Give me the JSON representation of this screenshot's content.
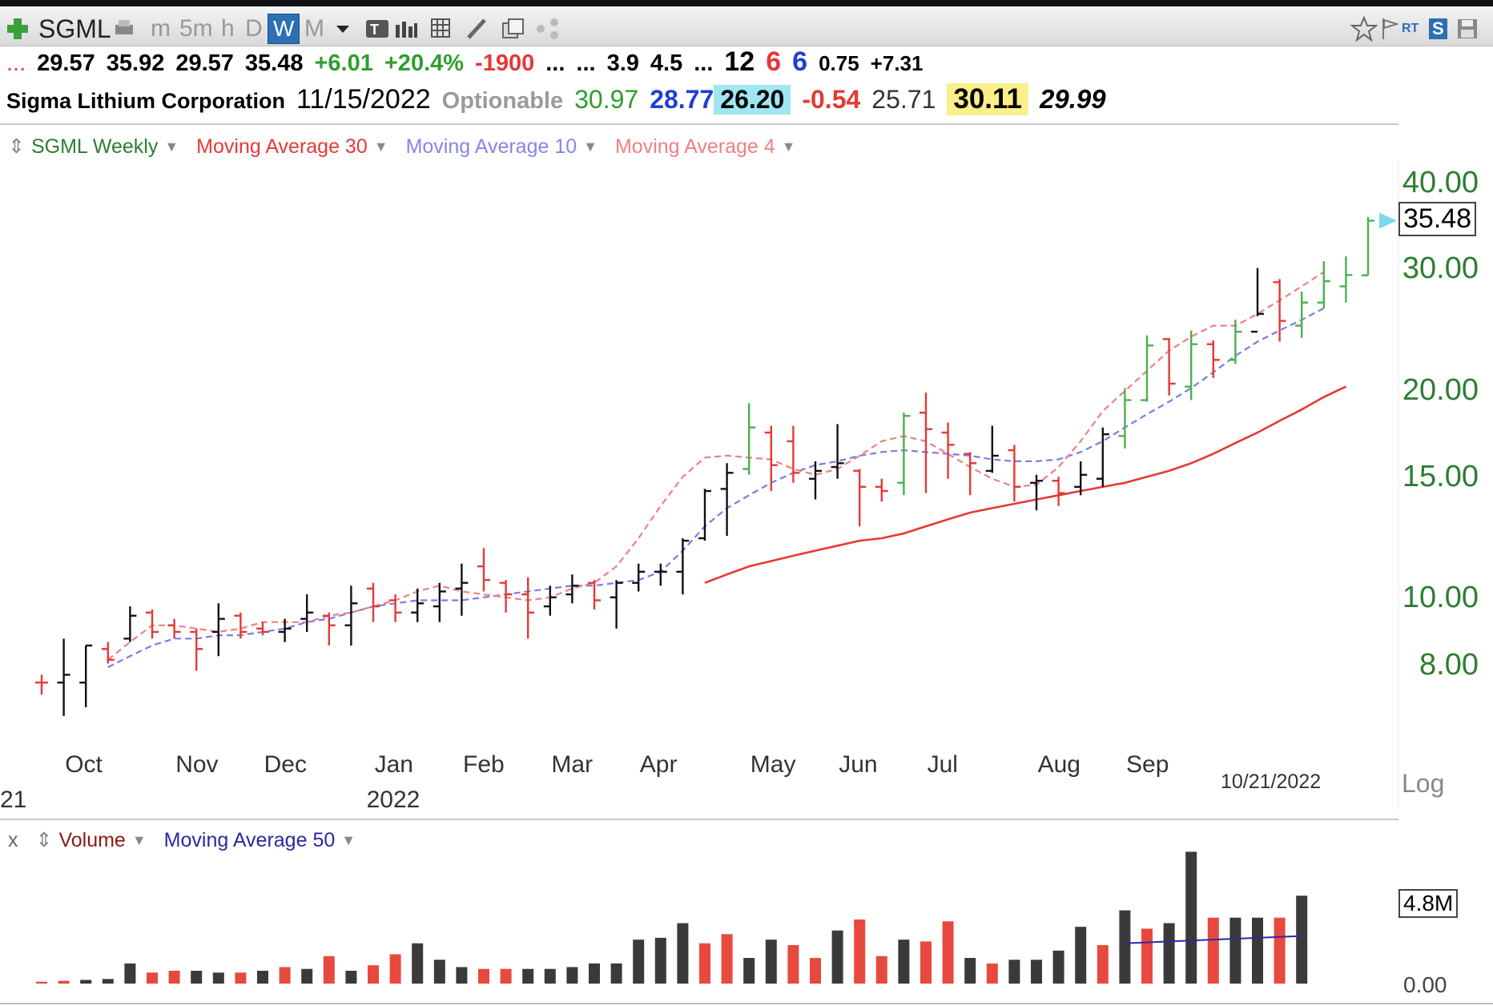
{
  "toolbar": {
    "symbol": "SGML",
    "intervals": [
      "m",
      "5m",
      "h",
      "D",
      "W",
      "M"
    ],
    "selected_interval": "W",
    "icons": [
      "add-icon",
      "print-icon",
      "dropdown-icon",
      "text-icon",
      "bars-icon",
      "grid-icon",
      "pencil-icon",
      "copy-icon",
      "share-icon",
      "star-icon",
      "flag-icon",
      "rt-icon",
      "s-icon",
      "save-icon"
    ],
    "rt_label": "RT",
    "s_label": "S"
  },
  "quote_row": {
    "ellipsis": "...",
    "open": "29.57",
    "high": "35.92",
    "low": "29.57",
    "close": "35.48",
    "change": "+6.01",
    "change_pct": "+20.4%",
    "value1": "-1900",
    "dots1": "...",
    "dots2": "...",
    "v3": "3.9",
    "v4": "4.5",
    "dots3": "...",
    "r1": "12",
    "r2": "6",
    "r3": "6",
    "v5": "0.75",
    "v6": "+7.31"
  },
  "info_row": {
    "company": "Sigma Lithium Corporation",
    "date": "11/15/2022",
    "optionable": "Optionable",
    "v1": "30.97",
    "v2": "28.77",
    "v3": "26.20",
    "v4": "-0.54",
    "v5": "25.71",
    "v6": "30.11",
    "v7": "29.99"
  },
  "price_legend": {
    "series": "SGML Weekly",
    "ma30": "Moving Average 30",
    "ma10": "Moving Average 10",
    "ma4": "Moving Average 4"
  },
  "volume_legend": {
    "close": "x",
    "series": "Volume",
    "ma50": "Moving Average 50"
  },
  "colors": {
    "up": "#4caf50",
    "down": "#e53935",
    "neutral": "#111111",
    "ma30": "#e53935",
    "ma10": "#7b7bea",
    "ma4": "#f08080",
    "axis_label": "#2e7d32",
    "vol_up": "#3a3a3a",
    "vol_down": "#e8493f",
    "ma50": "#2a2aa0"
  },
  "chart_data": [
    {
      "type": "ohlc",
      "title": "SGML Weekly",
      "y_scale": "log",
      "ylim": [
        6.6,
        44
      ],
      "y_ticks": [
        8,
        10,
        15,
        20,
        30,
        40
      ],
      "y_tick_labels": [
        "8.00",
        "10.00",
        "15.00",
        "20.00",
        "30.00",
        "40.00"
      ],
      "last_price_label": "35.48",
      "scale_label": "Log",
      "x_month_labels": [
        "Oct",
        "Nov",
        "Dec",
        "Jan",
        "Feb",
        "Mar",
        "Apr",
        "May",
        "Jun",
        "Jul",
        "Aug",
        "Sep"
      ],
      "x_month_index": [
        2,
        7,
        11,
        16,
        20,
        24,
        28,
        33,
        37,
        41,
        46,
        50
      ],
      "x_year_labels": [
        {
          "label": "2022",
          "index": 16
        },
        {
          "label": "21",
          "index": 0
        }
      ],
      "date_marker": "10/21/2022",
      "bars": [
        {
          "o": 7.6,
          "h": 7.8,
          "l": 7.3,
          "c": 7.6,
          "k": "down"
        },
        {
          "o": 7.6,
          "h": 8.8,
          "l": 6.8,
          "c": 7.8,
          "k": "neutral"
        },
        {
          "o": 7.6,
          "h": 8.6,
          "l": 7.0,
          "c": 8.6,
          "k": "neutral"
        },
        {
          "o": 8.5,
          "h": 8.7,
          "l": 8.1,
          "c": 8.2,
          "k": "down"
        },
        {
          "o": 8.8,
          "h": 9.8,
          "l": 8.7,
          "c": 9.5,
          "k": "neutral"
        },
        {
          "o": 9.6,
          "h": 9.7,
          "l": 8.8,
          "c": 9.0,
          "k": "down"
        },
        {
          "o": 9.2,
          "h": 9.4,
          "l": 8.8,
          "c": 9.0,
          "k": "down"
        },
        {
          "o": 9.0,
          "h": 9.1,
          "l": 7.9,
          "c": 8.5,
          "k": "down"
        },
        {
          "o": 9.0,
          "h": 9.9,
          "l": 8.3,
          "c": 9.4,
          "k": "neutral"
        },
        {
          "o": 9.5,
          "h": 9.6,
          "l": 8.8,
          "c": 9.0,
          "k": "down"
        },
        {
          "o": 9.1,
          "h": 9.3,
          "l": 8.9,
          "c": 9.0,
          "k": "down"
        },
        {
          "o": 9.0,
          "h": 9.4,
          "l": 8.7,
          "c": 9.1,
          "k": "neutral"
        },
        {
          "o": 9.4,
          "h": 10.2,
          "l": 9.0,
          "c": 9.6,
          "k": "neutral"
        },
        {
          "o": 9.5,
          "h": 9.6,
          "l": 8.6,
          "c": 9.2,
          "k": "down"
        },
        {
          "o": 9.2,
          "h": 10.5,
          "l": 8.6,
          "c": 9.9,
          "k": "neutral"
        },
        {
          "o": 10.4,
          "h": 10.6,
          "l": 9.3,
          "c": 9.8,
          "k": "down"
        },
        {
          "o": 10.0,
          "h": 10.2,
          "l": 9.3,
          "c": 9.6,
          "k": "down"
        },
        {
          "o": 9.6,
          "h": 10.4,
          "l": 9.3,
          "c": 9.9,
          "k": "neutral"
        },
        {
          "o": 9.8,
          "h": 10.6,
          "l": 9.3,
          "c": 10.3,
          "k": "neutral"
        },
        {
          "o": 10.4,
          "h": 11.3,
          "l": 9.5,
          "c": 10.6,
          "k": "neutral"
        },
        {
          "o": 11.2,
          "h": 11.9,
          "l": 10.3,
          "c": 10.7,
          "k": "down"
        },
        {
          "o": 10.6,
          "h": 10.7,
          "l": 9.6,
          "c": 10.2,
          "k": "down"
        },
        {
          "o": 10.2,
          "h": 10.8,
          "l": 8.8,
          "c": 9.6,
          "k": "down"
        },
        {
          "o": 9.8,
          "h": 10.5,
          "l": 9.5,
          "c": 10.1,
          "k": "neutral"
        },
        {
          "o": 10.2,
          "h": 10.9,
          "l": 9.9,
          "c": 10.5,
          "k": "neutral"
        },
        {
          "o": 10.6,
          "h": 10.7,
          "l": 9.7,
          "c": 10.0,
          "k": "down"
        },
        {
          "o": 10.1,
          "h": 10.7,
          "l": 9.1,
          "c": 10.6,
          "k": "neutral"
        },
        {
          "o": 10.6,
          "h": 11.3,
          "l": 10.3,
          "c": 11.0,
          "k": "neutral"
        },
        {
          "o": 11.0,
          "h": 11.3,
          "l": 10.5,
          "c": 11.0,
          "k": "neutral"
        },
        {
          "o": 11.0,
          "h": 12.3,
          "l": 10.2,
          "c": 12.2,
          "k": "neutral"
        },
        {
          "o": 12.3,
          "h": 14.5,
          "l": 12.2,
          "c": 14.4,
          "k": "neutral"
        },
        {
          "o": 14.5,
          "h": 15.8,
          "l": 12.4,
          "c": 15.3,
          "k": "neutral"
        },
        {
          "o": 15.5,
          "h": 19.3,
          "l": 15.2,
          "c": 17.8,
          "k": "up"
        },
        {
          "o": 17.5,
          "h": 17.9,
          "l": 14.4,
          "c": 15.7,
          "k": "down"
        },
        {
          "o": 17.0,
          "h": 17.9,
          "l": 14.8,
          "c": 15.3,
          "k": "down"
        },
        {
          "o": 15.0,
          "h": 15.9,
          "l": 14.0,
          "c": 15.4,
          "k": "neutral"
        },
        {
          "o": 15.6,
          "h": 18.0,
          "l": 15.0,
          "c": 15.8,
          "k": "neutral"
        },
        {
          "o": 15.4,
          "h": 15.5,
          "l": 12.8,
          "c": 14.6,
          "k": "down"
        },
        {
          "o": 14.6,
          "h": 15.0,
          "l": 13.9,
          "c": 14.4,
          "k": "down"
        },
        {
          "o": 14.8,
          "h": 18.7,
          "l": 14.2,
          "c": 18.5,
          "k": "up"
        },
        {
          "o": 18.7,
          "h": 20.0,
          "l": 14.3,
          "c": 17.7,
          "k": "down"
        },
        {
          "o": 17.5,
          "h": 18.1,
          "l": 15.0,
          "c": 16.8,
          "k": "down"
        },
        {
          "o": 16.3,
          "h": 16.4,
          "l": 14.2,
          "c": 15.8,
          "k": "down"
        },
        {
          "o": 15.4,
          "h": 17.9,
          "l": 15.3,
          "c": 16.2,
          "k": "neutral"
        },
        {
          "o": 16.5,
          "h": 16.8,
          "l": 13.9,
          "c": 14.6,
          "k": "down"
        },
        {
          "o": 14.8,
          "h": 15.2,
          "l": 13.5,
          "c": 14.9,
          "k": "neutral"
        },
        {
          "o": 14.9,
          "h": 15.1,
          "l": 13.7,
          "c": 14.3,
          "k": "down"
        },
        {
          "o": 14.6,
          "h": 15.9,
          "l": 14.2,
          "c": 15.2,
          "k": "neutral"
        },
        {
          "o": 15.0,
          "h": 17.8,
          "l": 14.6,
          "c": 17.4,
          "k": "neutral"
        },
        {
          "o": 17.3,
          "h": 20.3,
          "l": 16.6,
          "c": 19.5,
          "k": "up"
        },
        {
          "o": 19.5,
          "h": 24.2,
          "l": 19.4,
          "c": 23.4,
          "k": "up"
        },
        {
          "o": 23.9,
          "h": 24.0,
          "l": 19.8,
          "c": 20.6,
          "k": "down"
        },
        {
          "o": 20.4,
          "h": 24.6,
          "l": 19.5,
          "c": 23.5,
          "k": "up"
        },
        {
          "o": 23.5,
          "h": 23.8,
          "l": 21.0,
          "c": 22.3,
          "k": "down"
        },
        {
          "o": 22.3,
          "h": 25.5,
          "l": 22.0,
          "c": 24.5,
          "k": "up"
        },
        {
          "o": 24.5,
          "h": 30.3,
          "l": 25.8,
          "c": 26.0,
          "k": "neutral"
        },
        {
          "o": 28.9,
          "h": 29.2,
          "l": 23.7,
          "c": 25.4,
          "k": "down"
        },
        {
          "o": 25.0,
          "h": 28.0,
          "l": 24.0,
          "c": 27.0,
          "k": "up"
        },
        {
          "o": 27.0,
          "h": 31.0,
          "l": 26.5,
          "c": 29.0,
          "k": "up"
        },
        {
          "o": 28.5,
          "h": 31.5,
          "l": 27.0,
          "c": 29.6,
          "k": "up"
        },
        {
          "o": 29.57,
          "h": 35.92,
          "l": 29.57,
          "c": 35.48,
          "k": "up"
        }
      ],
      "series": [
        {
          "name": "Moving Average 30",
          "start": 30,
          "values": [
            10.6,
            10.9,
            11.2,
            11.4,
            11.6,
            11.8,
            12.0,
            12.2,
            12.3,
            12.5,
            12.8,
            13.1,
            13.4,
            13.6,
            13.8,
            14.0,
            14.2,
            14.4,
            14.6,
            14.8,
            15.1,
            15.4,
            15.8,
            16.3,
            16.9,
            17.5,
            18.2,
            18.9,
            19.7,
            20.4
          ]
        },
        {
          "name": "Moving Average 10",
          "start": 3,
          "values": [
            8.0,
            8.3,
            8.6,
            8.8,
            8.8,
            8.9,
            8.9,
            9.0,
            9.1,
            9.3,
            9.4,
            9.6,
            9.8,
            9.9,
            10.0,
            10.0,
            10.0,
            10.1,
            10.2,
            10.3,
            10.4,
            10.5,
            10.5,
            10.6,
            10.7,
            11.0,
            11.8,
            12.8,
            13.6,
            14.2,
            14.8,
            15.3,
            15.7,
            15.9,
            16.2,
            16.4,
            16.5,
            16.4,
            16.3,
            16.2,
            16.0,
            15.9,
            15.9,
            16.0,
            16.4,
            17.0,
            17.8,
            18.6,
            19.4,
            20.3,
            21.4,
            22.6,
            23.7,
            24.6,
            25.5,
            26.5
          ]
        },
        {
          "name": "Moving Average 4",
          "start": 3,
          "values": [
            8.2,
            8.7,
            9.2,
            9.2,
            9.1,
            9.0,
            9.1,
            9.3,
            9.3,
            9.3,
            9.5,
            9.6,
            9.8,
            10.0,
            10.3,
            10.5,
            10.3,
            10.2,
            10.1,
            10.0,
            10.1,
            10.4,
            10.6,
            11.2,
            12.3,
            13.7,
            15.1,
            16.1,
            16.2,
            16.1,
            16.0,
            15.5,
            15.2,
            15.5,
            16.2,
            17.0,
            17.3,
            17.0,
            16.3,
            15.6,
            15.0,
            14.6,
            14.7,
            15.6,
            17.0,
            18.8,
            20.1,
            21.5,
            23.0,
            24.1,
            25.0,
            25.0,
            26.0,
            27.2,
            28.5,
            29.9
          ]
        }
      ]
    },
    {
      "type": "bar",
      "title": "Volume",
      "ylim": [
        0,
        7.0
      ],
      "y_tick_labels": [
        "0.00"
      ],
      "last_value_label": "4.8M",
      "values": [
        0.1,
        0.15,
        0.2,
        0.25,
        1.1,
        0.6,
        0.7,
        0.7,
        0.6,
        0.6,
        0.7,
        0.9,
        0.8,
        1.5,
        0.7,
        1.0,
        1.6,
        2.2,
        1.3,
        0.9,
        0.8,
        0.8,
        0.8,
        0.8,
        0.9,
        1.1,
        1.1,
        2.4,
        2.5,
        3.3,
        2.2,
        2.7,
        1.4,
        2.4,
        2.1,
        1.4,
        2.9,
        3.5,
        1.5,
        2.4,
        2.3,
        3.4,
        1.4,
        1.1,
        1.3,
        1.3,
        1.8,
        3.1,
        2.1,
        4.0,
        3.0,
        3.3,
        7.2,
        3.6,
        3.6,
        3.6,
        3.6,
        4.8
      ],
      "kinds": [
        "down",
        "down",
        "neutral",
        "neutral",
        "neutral",
        "down",
        "down",
        "neutral",
        "neutral",
        "down",
        "neutral",
        "down",
        "neutral",
        "down",
        "neutral",
        "down",
        "down",
        "neutral",
        "neutral",
        "neutral",
        "down",
        "down",
        "neutral",
        "neutral",
        "neutral",
        "neutral",
        "neutral",
        "neutral",
        "neutral",
        "neutral",
        "down",
        "down",
        "neutral",
        "neutral",
        "down",
        "down",
        "neutral",
        "down",
        "down",
        "neutral",
        "down",
        "down",
        "neutral",
        "down",
        "neutral",
        "neutral",
        "neutral",
        "neutral",
        "down",
        "neutral",
        "down",
        "neutral",
        "neutral",
        "down",
        "neutral",
        "neutral",
        "down",
        "neutral"
      ],
      "series": [
        {
          "name": "Moving Average 50",
          "start": 49,
          "values": [
            2.2,
            2.25,
            2.3,
            2.35,
            2.4,
            2.45,
            2.5,
            2.55,
            2.6
          ]
        }
      ]
    }
  ]
}
